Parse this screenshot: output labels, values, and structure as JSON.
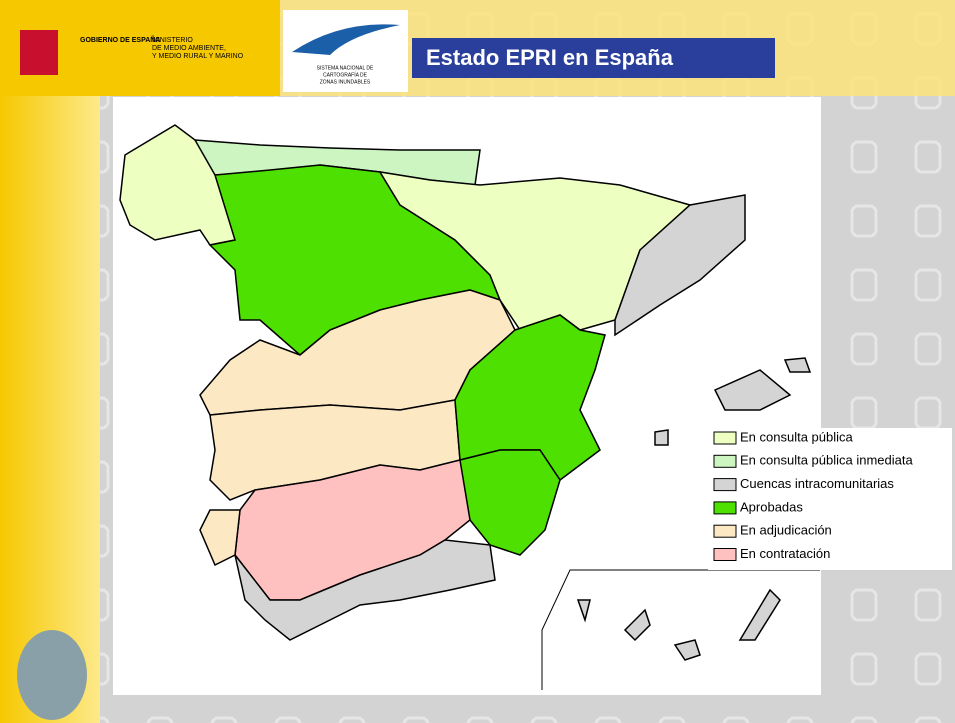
{
  "header": {
    "gov": "GOBIERNO DE ESPAÑA",
    "ministry_lines": [
      "MINISTERIO",
      "DE MEDIO AMBIENTE,",
      "Y MEDIO RURAL Y MARINO"
    ],
    "sncz_lines": [
      "SISTEMA NACIONAL DE",
      "CARTOGRAFÍA DE",
      "ZONAS INUNDABLES"
    ],
    "title": "Estado EPRI en España"
  },
  "legend": [
    {
      "label": "En consulta pública",
      "color": "#eeffc2"
    },
    {
      "label": "En consulta pública inmediata",
      "color": "#ccf5c2"
    },
    {
      "label": "Cuencas intracomunitarias",
      "color": "#d4d4d4"
    },
    {
      "label": "Aprobadas",
      "color": "#4ee000"
    },
    {
      "label": "En adjudicación",
      "color": "#fde8c4"
    },
    {
      "label": "En contratación",
      "color": "#ffc0c0"
    }
  ]
}
